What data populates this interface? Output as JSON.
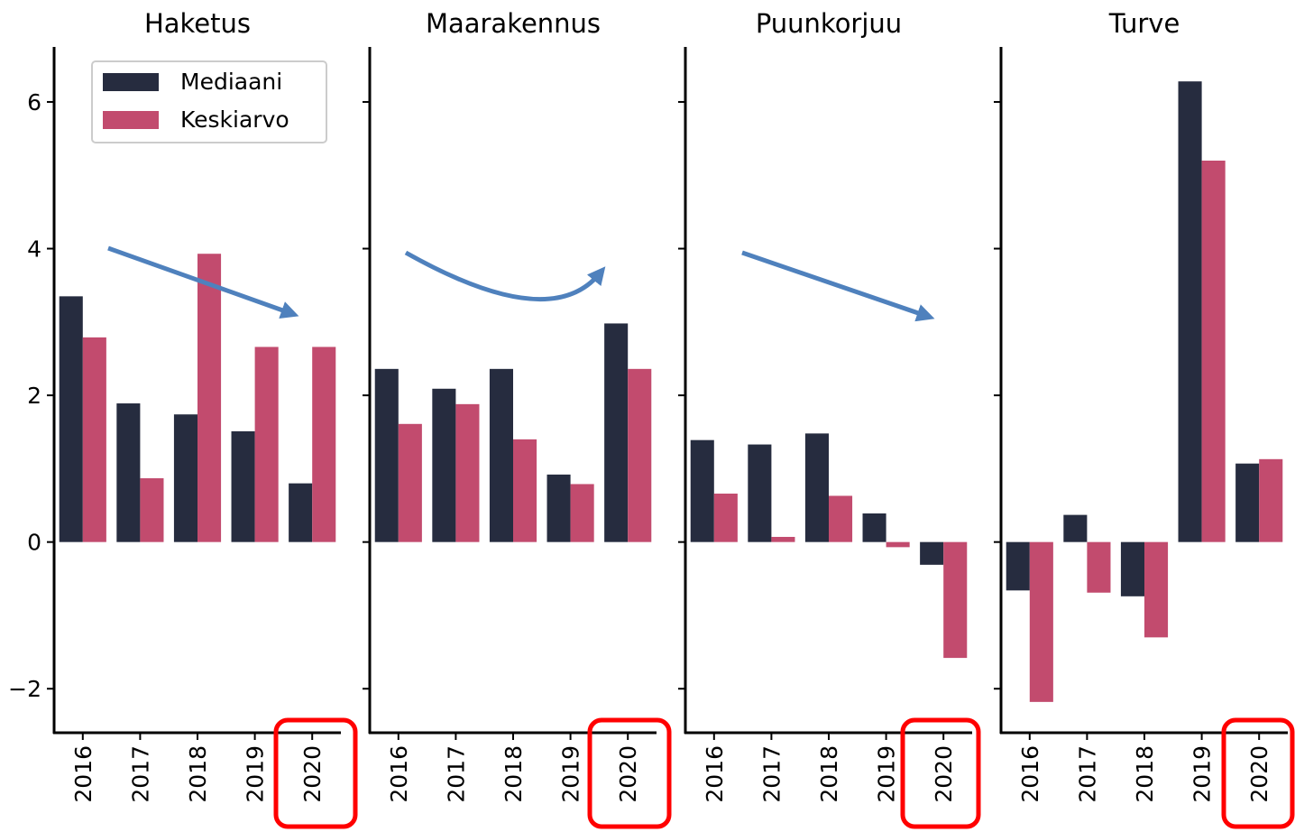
{
  "chart_data": [
    {
      "type": "bar",
      "title": "Haketus",
      "categories": [
        "2016",
        "2017",
        "2018",
        "2019",
        "2020"
      ],
      "series": [
        {
          "name": "Mediaani",
          "color": "#262c3f",
          "values": [
            3.35,
            1.89,
            1.74,
            1.51,
            0.8
          ]
        },
        {
          "name": "Keskiarvo",
          "color": "#c24b6e",
          "values": [
            2.79,
            0.87,
            3.93,
            2.66,
            2.66
          ]
        }
      ],
      "ylim": [
        -2.6,
        6.75
      ],
      "yticks": [
        {
          "value": -2,
          "label": "−2"
        },
        0,
        2,
        4,
        6
      ],
      "legend": "upper right"
    },
    {
      "type": "bar",
      "title": "Maarakennus",
      "categories": [
        "2016",
        "2017",
        "2018",
        "2019",
        "2020"
      ],
      "series": [
        {
          "name": "Mediaani",
          "color": "#262c3f",
          "values": [
            2.36,
            2.09,
            2.36,
            0.92,
            2.98
          ]
        },
        {
          "name": "Keskiarvo",
          "color": "#c24b6e",
          "values": [
            1.61,
            1.88,
            1.4,
            0.79,
            2.36
          ]
        }
      ],
      "ylim": [
        -2.6,
        6.75
      ],
      "yticks": [
        -2,
        0,
        2,
        4,
        6
      ]
    },
    {
      "type": "bar",
      "title": "Puunkorjuu",
      "categories": [
        "2016",
        "2017",
        "2018",
        "2019",
        "2020"
      ],
      "series": [
        {
          "name": "Mediaani",
          "color": "#262c3f",
          "values": [
            1.39,
            1.33,
            1.48,
            0.39,
            -0.31
          ]
        },
        {
          "name": "Keskiarvo",
          "color": "#c24b6e",
          "values": [
            0.66,
            0.07,
            0.63,
            -0.07,
            -1.58
          ]
        }
      ],
      "ylim": [
        -2.6,
        6.75
      ],
      "yticks": [
        -2,
        0,
        2,
        4,
        6
      ]
    },
    {
      "type": "bar",
      "title": "Turve",
      "categories": [
        "2016",
        "2017",
        "2018",
        "2019",
        "2020"
      ],
      "series": [
        {
          "name": "Mediaani",
          "color": "#262c3f",
          "values": [
            -0.66,
            0.37,
            -0.74,
            6.28,
            1.07
          ]
        },
        {
          "name": "Keskiarvo",
          "color": "#c24b6e",
          "values": [
            -2.18,
            -0.69,
            -1.3,
            5.2,
            1.13
          ]
        }
      ],
      "ylim": [
        -2.6,
        6.75
      ],
      "yticks": [
        -2,
        0,
        2,
        4,
        6
      ]
    }
  ]
}
